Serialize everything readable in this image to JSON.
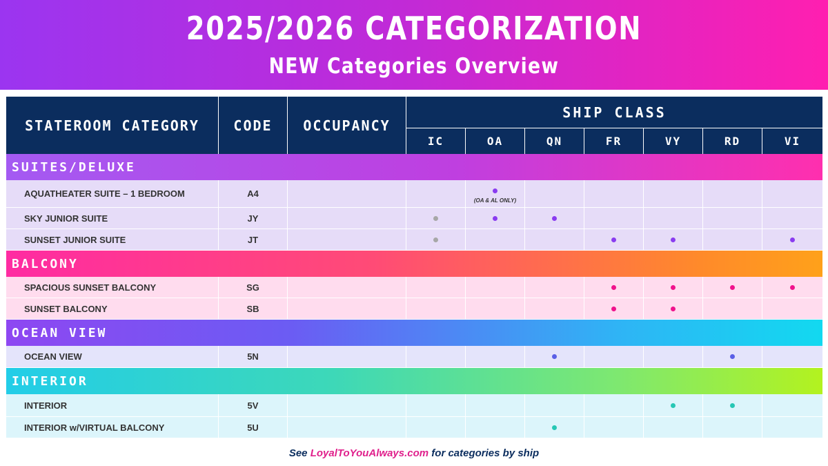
{
  "banner": {
    "title": "2025/2026 CATEGORIZATION",
    "subtitle": "NEW Categories Overview"
  },
  "table": {
    "headers": {
      "category": "STATEROOM CATEGORY",
      "code": "CODE",
      "occupancy": "OCCUPANCY",
      "ship_class": "SHIP CLASS",
      "ship_classes": [
        "IC",
        "OA",
        "QN",
        "FR",
        "VY",
        "RD",
        "VI"
      ]
    },
    "sections": [
      {
        "label": "SUITES/DELUXE",
        "rows": [
          {
            "name": "AQUATHEATER SUITE – 1 BEDROOM",
            "code": "A4",
            "marks": {
              "OA": "#8a3cf0"
            },
            "note": {
              "col": "OA",
              "text": "(OA & AL ONLY)"
            }
          },
          {
            "name": "SKY JUNIOR SUITE",
            "code": "JY",
            "marks": {
              "IC": "#a7a7a7",
              "OA": "#8a3cf0",
              "QN": "#8a3cf0"
            }
          },
          {
            "name": "SUNSET JUNIOR SUITE",
            "code": "JT",
            "marks": {
              "IC": "#a7a7a7",
              "FR": "#8a3cf0",
              "VY": "#8a3cf0",
              "VI": "#8a3cf0"
            }
          }
        ]
      },
      {
        "label": "BALCONY",
        "rows": [
          {
            "name": "SPACIOUS SUNSET BALCONY",
            "code": "SG",
            "marks": {
              "FR": "#f0128c",
              "VY": "#f0128c",
              "RD": "#f0128c",
              "VI": "#f0128c"
            }
          },
          {
            "name": "SUNSET BALCONY",
            "code": "SB",
            "marks": {
              "FR": "#f0128c",
              "VY": "#f0128c"
            }
          }
        ]
      },
      {
        "label": "OCEAN VIEW",
        "rows": [
          {
            "name": "OCEAN VIEW",
            "code": "5N",
            "marks": {
              "QN": "#5a5fe6",
              "RD": "#5a5fe6"
            }
          }
        ]
      },
      {
        "label": "INTERIOR",
        "rows": [
          {
            "name": "INTERIOR",
            "code": "5V",
            "marks": {
              "VY": "#26c7b4",
              "RD": "#26c7b4"
            }
          },
          {
            "name": "INTERIOR w/VIRTUAL BALCONY",
            "code": "5U",
            "marks": {
              "QN": "#26c7b4"
            }
          }
        ]
      }
    ]
  },
  "footer": {
    "prefix": "See ",
    "link": "LoyalToYouAlways.com",
    "suffix": " for categories by ship"
  },
  "colors": {
    "header_bg": "#0b2d5e",
    "suite_dot": "#8a3cf0",
    "balcony_dot": "#f0128c",
    "ocean_dot": "#5a5fe6",
    "interior_dot": "#26c7b4",
    "unavailable_dot": "#a7a7a7"
  }
}
